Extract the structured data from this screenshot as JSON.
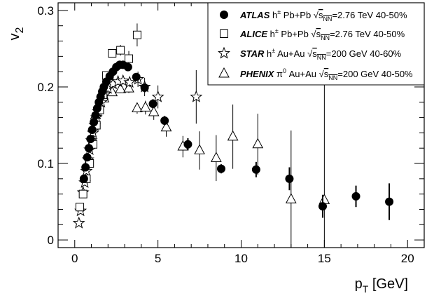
{
  "chart_data": {
    "type": "scatter",
    "xlabel": "p_T [GeV]",
    "ylabel": "v_2",
    "xlim": [
      -1,
      21
    ],
    "ylim": [
      -0.01,
      0.31
    ],
    "x_ticks": [
      0,
      5,
      10,
      15,
      20
    ],
    "y_ticks": [
      0,
      0.1,
      0.2,
      0.3
    ],
    "x_tick_labels": [
      "0",
      "5",
      "10",
      "15",
      "20"
    ],
    "y_tick_labels": [
      "0",
      "0.1",
      "0.2",
      "0.3"
    ],
    "grid": false,
    "legend_position": "top-right",
    "series": [
      {
        "name": "ATLAS",
        "label": "h± Pb+Pb √sNN=2.76 TeV 40-50%",
        "marker": "filled-circle",
        "x": [
          0.55,
          0.65,
          0.75,
          0.85,
          0.95,
          1.05,
          1.15,
          1.25,
          1.35,
          1.45,
          1.55,
          1.65,
          1.75,
          1.9,
          2.1,
          2.3,
          2.5,
          2.7,
          2.9,
          3.2,
          3.7,
          4.2,
          4.7,
          5.4,
          6.8,
          8.8,
          10.9,
          12.9,
          14.9,
          16.9,
          18.9
        ],
        "y": [
          0.08,
          0.095,
          0.108,
          0.12,
          0.132,
          0.144,
          0.154,
          0.163,
          0.172,
          0.18,
          0.187,
          0.194,
          0.2,
          0.207,
          0.214,
          0.22,
          0.226,
          0.229,
          0.229,
          0.226,
          0.213,
          0.199,
          0.178,
          0.156,
          0.125,
          0.093,
          0.092,
          0.08,
          0.044,
          0.057,
          0.05
        ],
        "err": [
          0.002,
          0.002,
          0.002,
          0.002,
          0.002,
          0.002,
          0.002,
          0.002,
          0.002,
          0.002,
          0.002,
          0.002,
          0.002,
          0.002,
          0.002,
          0.002,
          0.003,
          0.003,
          0.003,
          0.004,
          0.005,
          0.006,
          0.006,
          0.006,
          0.008,
          0.006,
          0.01,
          0.015,
          0.015,
          0.014,
          0.024
        ]
      },
      {
        "name": "ALICE",
        "label": "h± Pb+Pb √sNN=2.76 TeV 40-50%",
        "marker": "open-square",
        "x": [
          0.3,
          0.5,
          0.7,
          0.9,
          1.1,
          1.3,
          1.5,
          1.7,
          1.9,
          2.25,
          2.75,
          3.25,
          3.75
        ],
        "y": [
          0.043,
          0.06,
          0.08,
          0.1,
          0.125,
          0.15,
          0.17,
          0.19,
          0.215,
          0.244,
          0.248,
          0.237,
          0.268
        ],
        "err": [
          0.002,
          0.002,
          0.002,
          0.002,
          0.002,
          0.003,
          0.003,
          0.003,
          0.004,
          0.005,
          0.007,
          0.01,
          0.015
        ]
      },
      {
        "name": "STAR",
        "label": "h± Au+Au √sNN=200 GeV 40-60%",
        "marker": "open-star",
        "x": [
          0.25,
          0.35,
          0.5,
          0.6,
          0.7,
          0.8,
          0.9,
          1.0,
          1.1,
          1.2,
          1.3,
          1.4,
          1.6,
          1.8,
          2.0,
          2.3,
          2.6,
          2.9,
          3.3,
          3.8,
          4.2,
          5.0,
          7.3
        ],
        "y": [
          0.022,
          0.038,
          0.062,
          0.075,
          0.09,
          0.105,
          0.118,
          0.13,
          0.14,
          0.15,
          0.16,
          0.168,
          0.18,
          0.19,
          0.198,
          0.204,
          0.207,
          0.208,
          0.206,
          0.21,
          0.2,
          0.187,
          0.187
        ],
        "err": [
          0.002,
          0.002,
          0.002,
          0.002,
          0.002,
          0.002,
          0.002,
          0.002,
          0.002,
          0.002,
          0.002,
          0.002,
          0.003,
          0.003,
          0.003,
          0.004,
          0.004,
          0.005,
          0.006,
          0.01,
          0.012,
          0.015,
          0.035
        ]
      },
      {
        "name": "PHENIX",
        "label": "π0 Au+Au √sNN=200 GeV 40-50%",
        "marker": "open-triangle",
        "x": [
          1.25,
          1.75,
          2.25,
          2.75,
          3.25,
          3.75,
          4.25,
          4.75,
          5.5,
          6.5,
          7.5,
          8.5,
          9.5,
          11.0,
          13.0,
          15.0
        ],
        "y": [
          0.163,
          0.185,
          0.193,
          0.197,
          0.198,
          0.172,
          0.173,
          0.167,
          0.147,
          0.122,
          0.117,
          0.107,
          0.135,
          0.125,
          0.053,
          0.052
        ],
        "err": [
          0.003,
          0.003,
          0.004,
          0.005,
          0.006,
          0.007,
          0.009,
          0.01,
          0.012,
          0.014,
          0.025,
          0.03,
          0.042,
          0.04,
          0.09,
          0.19
        ]
      }
    ]
  },
  "legend": {
    "entries": [
      {
        "exp": "ATLAS",
        "particle": "h",
        "particle_sup": "±",
        "system": " Pb+Pb ",
        "sqrt_sub": "NN",
        "tail": "=2.76 TeV 40-50%"
      },
      {
        "exp": "ALICE",
        "particle": "h",
        "particle_sup": "±",
        "system": " Pb+Pb ",
        "sqrt_sub": "NN",
        "tail": "=2.76 TeV 40-50%"
      },
      {
        "exp": "STAR",
        "particle": "h",
        "particle_sup": "±",
        "system": " Au+Au ",
        "sqrt_sub": "NN",
        "tail": "=200 GeV 40-60%"
      },
      {
        "exp": "PHENIX",
        "particle": "π",
        "particle_sup": "0",
        "system": " Au+Au ",
        "sqrt_sub": "NN",
        "tail": "=200 GeV 40-50%"
      }
    ]
  }
}
